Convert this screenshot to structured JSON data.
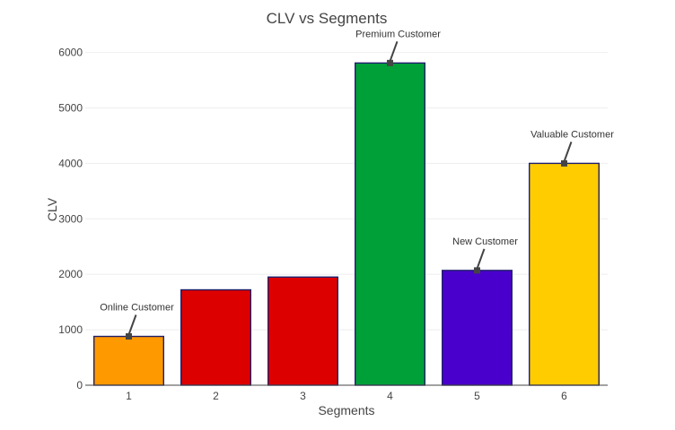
{
  "chart_data": {
    "type": "bar",
    "title": "CLV vs Segments",
    "xlabel": "Segments",
    "ylabel": "CLV",
    "categories": [
      "1",
      "2",
      "3",
      "4",
      "5",
      "6"
    ],
    "values": [
      880,
      1720,
      1950,
      5810,
      2070,
      4000
    ],
    "colors": [
      "#ff9900",
      "#dd0000",
      "#dd0000",
      "#00a039",
      "#4a00cc",
      "#ffcc00"
    ],
    "ylim": [
      0,
      6300
    ],
    "yticks": [
      0,
      1000,
      2000,
      3000,
      4000,
      5000,
      6000
    ],
    "grid": true,
    "annotations": [
      {
        "category": "1",
        "text": "Online Customer"
      },
      {
        "category": "4",
        "text": "Premium Customer"
      },
      {
        "category": "5",
        "text": "New Customer"
      },
      {
        "category": "6",
        "text": "Valuable Customer"
      }
    ]
  }
}
